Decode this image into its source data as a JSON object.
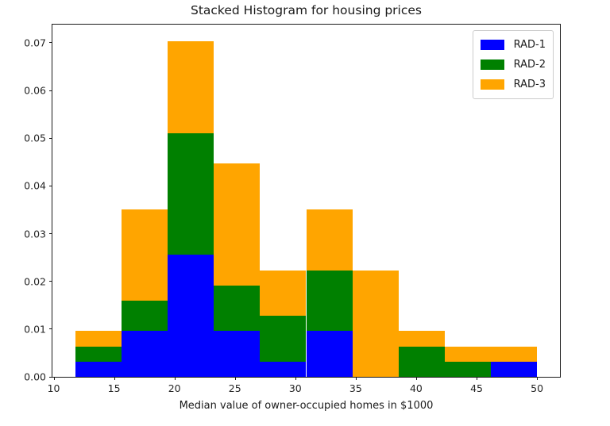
{
  "title": "Stacked Histogram for housing prices",
  "xlabel": "Median value of owner-occupied homes in $1000",
  "chart_data": {
    "type": "bar",
    "subtype": "stacked-density-histogram",
    "title": "Stacked Histogram for housing prices",
    "xlabel": "Median value of owner-occupied homes in $1000",
    "ylabel": "",
    "grid": false,
    "bin_edges": [
      11.8,
      15.62,
      19.44,
      23.26,
      27.08,
      30.9,
      34.72,
      38.54,
      42.36,
      46.18,
      50.0
    ],
    "unit_density": 0.0031925,
    "series": [
      {
        "name": "RAD-1",
        "color": "#0000ff",
        "counts": [
          1,
          3,
          8,
          3,
          1,
          3,
          0,
          0,
          0,
          1
        ],
        "densities": [
          0.00319,
          0.00958,
          0.02554,
          0.00958,
          0.00319,
          0.00958,
          0,
          0,
          0,
          0.00319
        ]
      },
      {
        "name": "RAD-2",
        "color": "#008000",
        "counts": [
          1,
          2,
          8,
          3,
          3,
          4,
          0,
          2,
          1,
          0
        ],
        "densities": [
          0.00319,
          0.00639,
          0.02554,
          0.00958,
          0.00958,
          0.01277,
          0,
          0.00639,
          0.00319,
          0
        ]
      },
      {
        "name": "RAD-3",
        "color": "#ffa500",
        "counts": [
          1,
          6,
          6,
          8,
          3,
          4,
          7,
          1,
          1,
          1
        ],
        "densities": [
          0.00319,
          0.01916,
          0.01916,
          0.02554,
          0.00958,
          0.01277,
          0.02235,
          0.00319,
          0.00319,
          0.00319
        ]
      }
    ],
    "stack_top_densities": [
      0.00958,
      0.03512,
      0.07025,
      0.0447,
      0.02235,
      0.03512,
      0.02235,
      0.00958,
      0.00639,
      0.00639
    ],
    "xlim": [
      9.9,
      51.9
    ],
    "ylim": [
      0,
      0.0738
    ],
    "xticks": [
      "10",
      "15",
      "20",
      "25",
      "30",
      "35",
      "40",
      "45",
      "50"
    ],
    "yticks": [
      "0.00",
      "0.01",
      "0.02",
      "0.03",
      "0.04",
      "0.05",
      "0.06",
      "0.07"
    ],
    "legend": {
      "position": "upper right",
      "entries": [
        "RAD-1",
        "RAD-2",
        "RAD-3"
      ]
    }
  }
}
